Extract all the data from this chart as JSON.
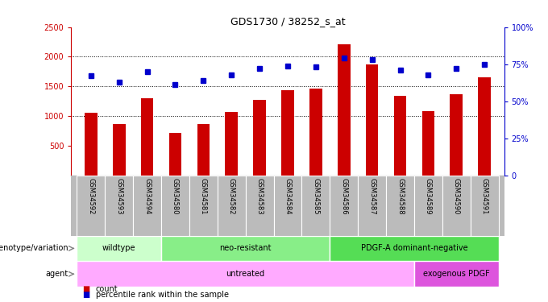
{
  "title": "GDS1730 / 38252_s_at",
  "samples": [
    "GSM34592",
    "GSM34593",
    "GSM34594",
    "GSM34580",
    "GSM34581",
    "GSM34582",
    "GSM34583",
    "GSM34584",
    "GSM34585",
    "GSM34586",
    "GSM34587",
    "GSM34588",
    "GSM34589",
    "GSM34590",
    "GSM34591"
  ],
  "counts": [
    1060,
    860,
    1300,
    720,
    860,
    1070,
    1270,
    1430,
    1460,
    2210,
    1870,
    1340,
    1080,
    1370,
    1650
  ],
  "percentiles": [
    67,
    63,
    70,
    61,
    64,
    68,
    72,
    74,
    73,
    79,
    78,
    71,
    68,
    72,
    75
  ],
  "bar_color": "#cc0000",
  "dot_color": "#0000cc",
  "ylim_left": [
    0,
    2500
  ],
  "ylim_right": [
    0,
    100
  ],
  "yticks_left": [
    500,
    1000,
    1500,
    2000,
    2500
  ],
  "yticks_right": [
    0,
    25,
    50,
    75,
    100
  ],
  "grid_values": [
    1000,
    1500,
    2000
  ],
  "genotype_groups": [
    {
      "label": "wildtype",
      "start": 0,
      "end": 3,
      "color": "#ccffcc"
    },
    {
      "label": "neo-resistant",
      "start": 3,
      "end": 9,
      "color": "#88ee88"
    },
    {
      "label": "PDGF-A dominant-negative",
      "start": 9,
      "end": 15,
      "color": "#55dd55"
    }
  ],
  "agent_groups": [
    {
      "label": "untreated",
      "start": 0,
      "end": 12,
      "color": "#ffaaff"
    },
    {
      "label": "exogenous PDGF",
      "start": 12,
      "end": 15,
      "color": "#dd55dd"
    }
  ],
  "legend_items": [
    {
      "label": "count",
      "color": "#cc0000"
    },
    {
      "label": "percentile rank within the sample",
      "color": "#0000cc"
    }
  ],
  "row_labels": [
    "genotype/variation",
    "agent"
  ],
  "bg_color": "#ffffff",
  "tick_area_color": "#bbbbbb"
}
